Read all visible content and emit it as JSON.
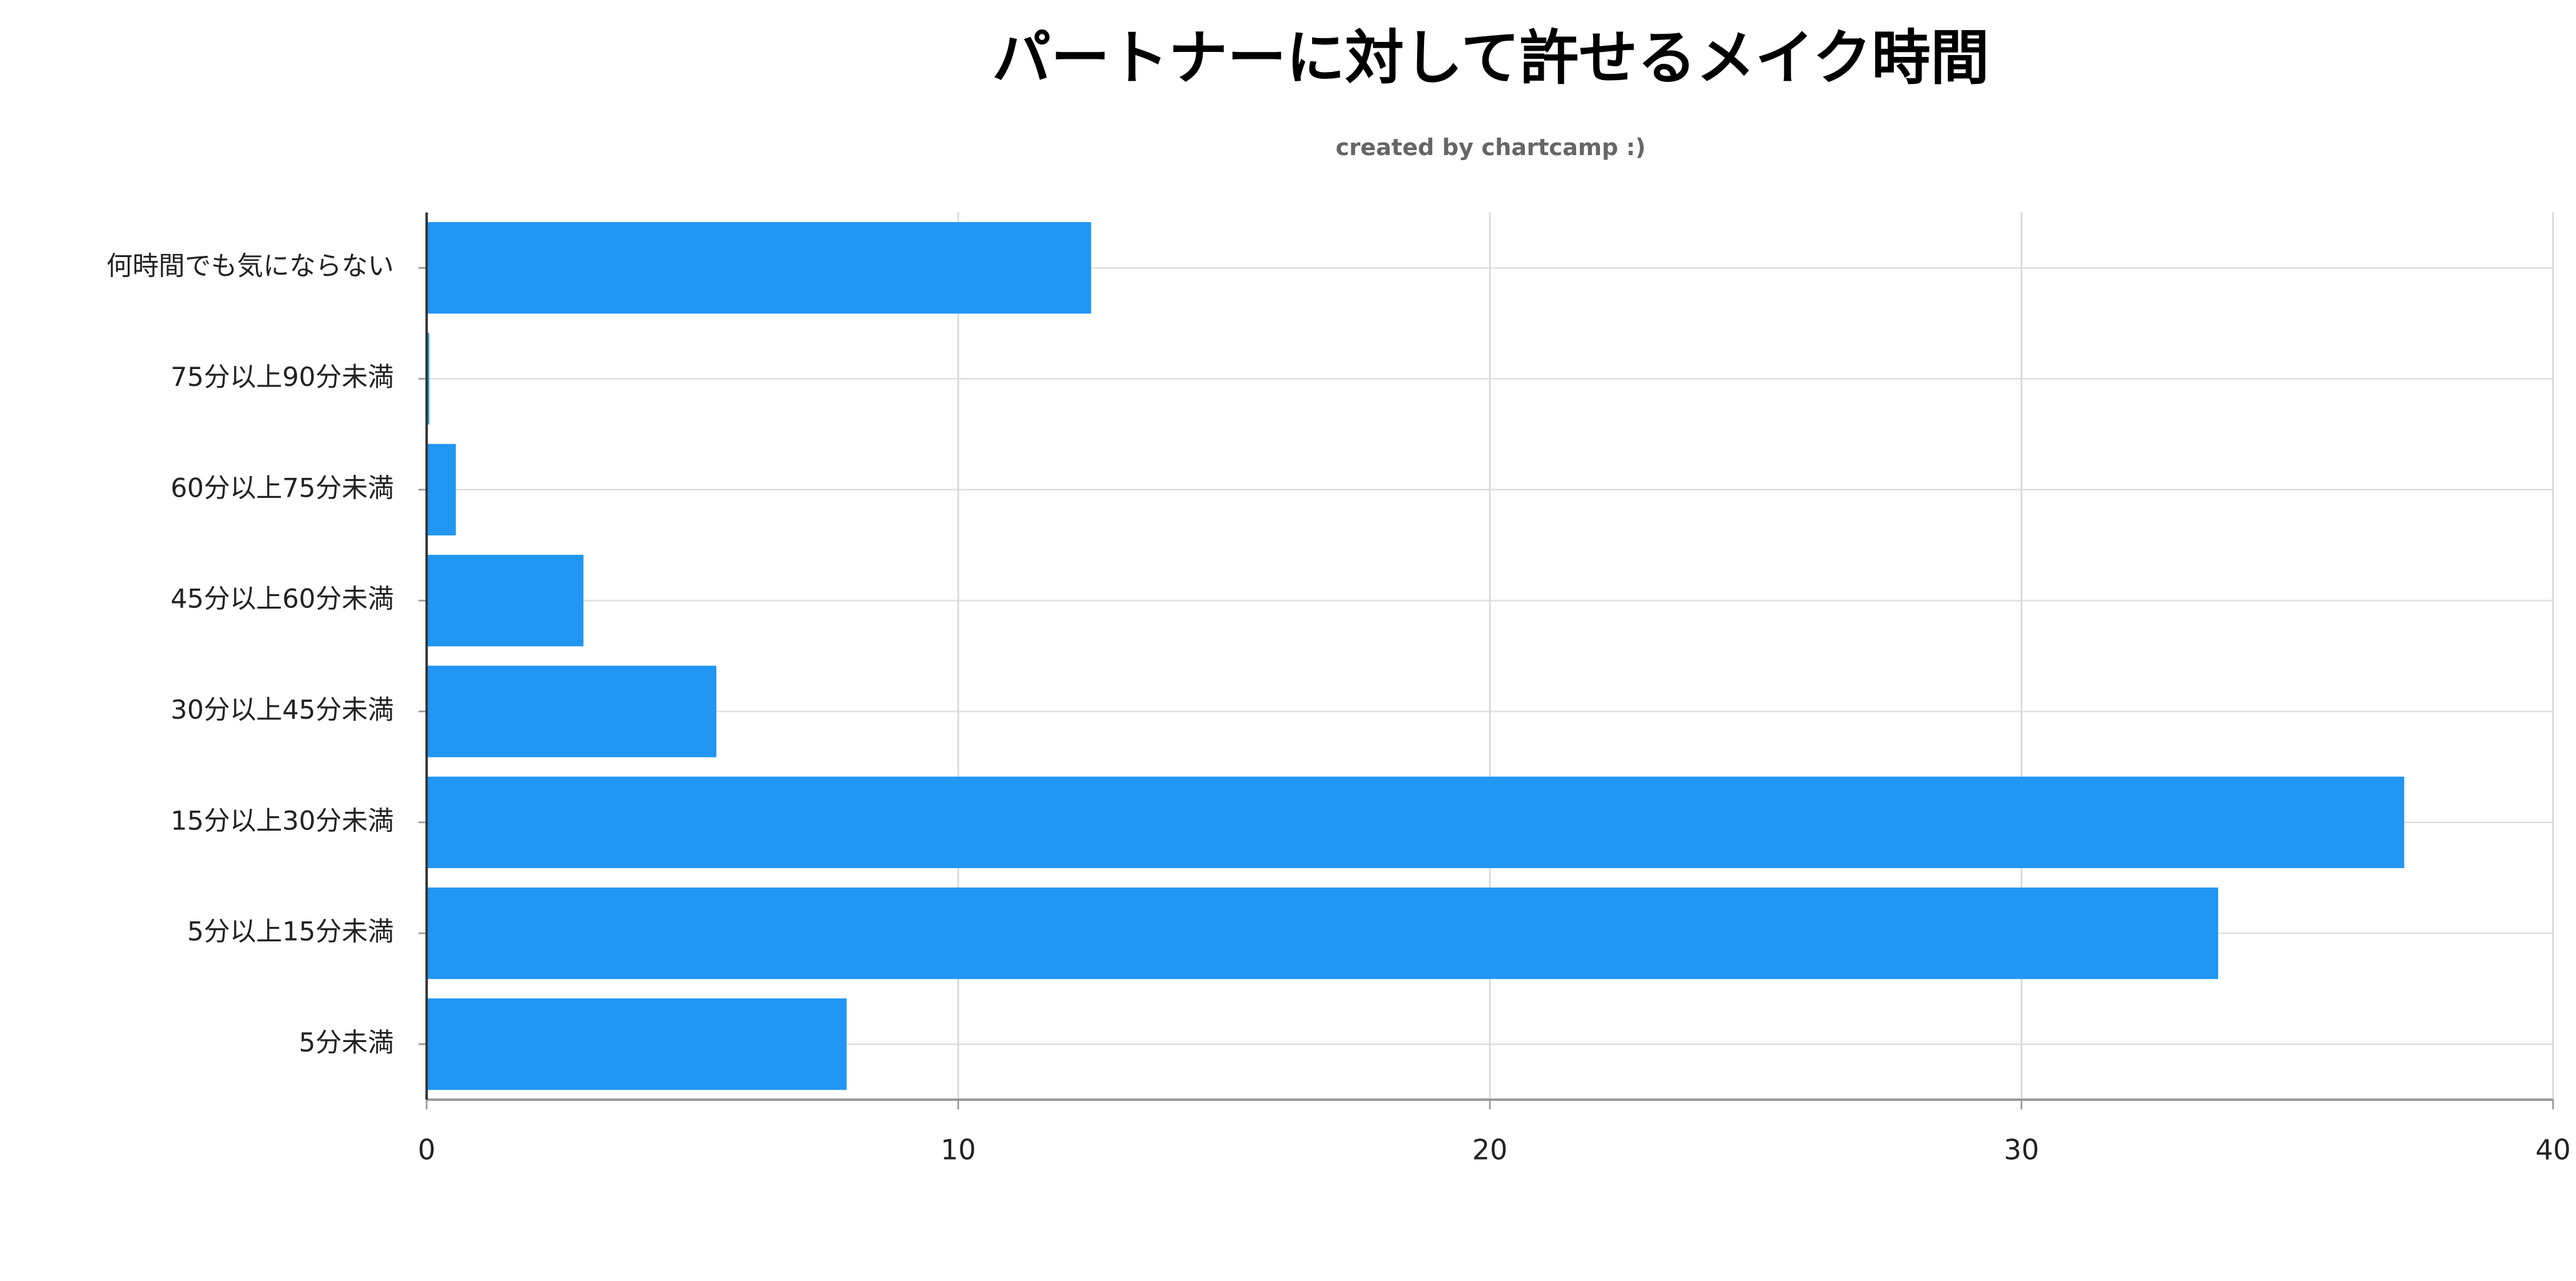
{
  "chart_data": {
    "type": "bar",
    "orientation": "horizontal",
    "title": "パートナーに対して許せるメイク時間",
    "subtitle": "created by chartcamp :)",
    "categories": [
      "何時間でも気にならない",
      "75分以上90分未満",
      "60分以上75分未満",
      "45分以上60分未満",
      "30分以上45分未満",
      "15分以上30分未満",
      "5分以上15分未満",
      "5分未満"
    ],
    "values": [
      12.5,
      0.05,
      0.55,
      2.95,
      5.45,
      37.2,
      33.7,
      7.9
    ],
    "color": "#2196f3",
    "xlim": [
      0,
      40
    ],
    "xticks": [
      0,
      10,
      20,
      30,
      40
    ],
    "grid": true
  }
}
